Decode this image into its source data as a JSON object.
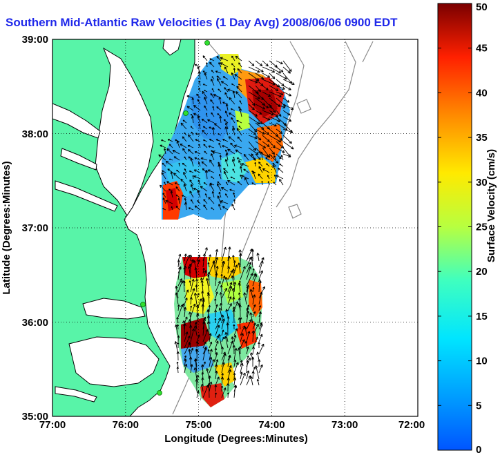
{
  "title": "Southern Mid-Atlantic Raw Velocities (1 Day Avg) 2008/06/06 0900 EDT",
  "axes": {
    "x_label": "Longitude (Degrees:Minutes)",
    "y_label": "Latitude (Degrees:Minutes)",
    "x_ticks": [
      "77:00",
      "76:00",
      "75:00",
      "74:00",
      "73:00",
      "72:00"
    ],
    "y_ticks": [
      "39:00",
      "38:00",
      "37:00",
      "36:00",
      "35:00"
    ]
  },
  "colorbar": {
    "label": "Surface Velocity (cm/s)",
    "ticks": [
      "50",
      "45",
      "40",
      "35",
      "30",
      "25",
      "20",
      "15",
      "10",
      "5",
      "0"
    ],
    "min": 0,
    "max": 50,
    "colormap": "jet"
  },
  "colors": {
    "land": "#58f4a8",
    "title": "#1f28ea",
    "coast": "#000000",
    "bathymetry": "#8a8a8a",
    "station": "#2fe02f"
  },
  "map_bounds": {
    "lon_min": -77,
    "lon_max": -72,
    "lat_min": 35,
    "lat_max": 39
  }
}
